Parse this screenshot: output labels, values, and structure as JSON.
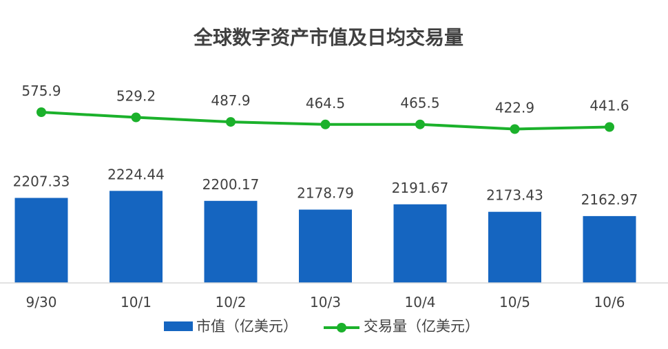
{
  "chart_data": {
    "type": "bar",
    "title": "全球数字资产市值及日均交易量",
    "categories": [
      "9/30",
      "10/1",
      "10/2",
      "10/3",
      "10/4",
      "10/5",
      "10/6"
    ],
    "series": [
      {
        "name": "市值（亿美元）",
        "type": "bar",
        "color": "#1565C0",
        "values": [
          2207.33,
          2224.44,
          2200.17,
          2178.79,
          2191.67,
          2173.43,
          2162.97
        ],
        "labels": [
          "2207.33",
          "2224.44",
          "2200.17",
          "2178.79",
          "2191.67",
          "2173.43",
          "2162.97"
        ]
      },
      {
        "name": "交易量（亿美元）",
        "type": "line",
        "color": "#1BB12B",
        "values": [
          575.9,
          529.2,
          487.9,
          464.5,
          465.5,
          422.9,
          441.6
        ],
        "labels": [
          "575.9",
          "529.2",
          "487.9",
          "464.5",
          "465.5",
          "422.9",
          "441.6"
        ]
      }
    ],
    "legend": "bottom",
    "grid": false
  }
}
